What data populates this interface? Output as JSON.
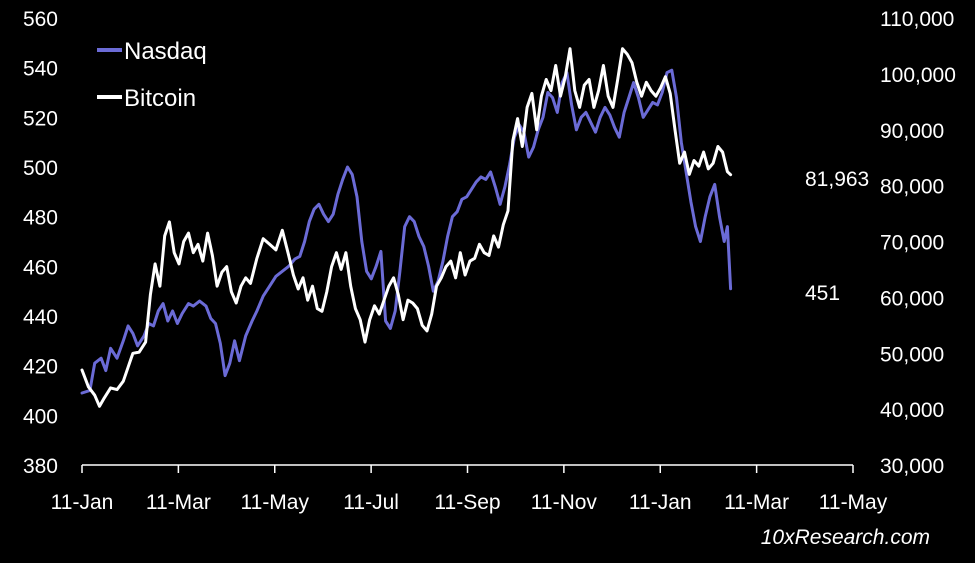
{
  "chart_data": {
    "type": "line",
    "title": "",
    "xlabel": "",
    "ylabel_left": "",
    "ylabel_right": "",
    "x_ticks": [
      "11-Jan",
      "11-Mar",
      "11-May",
      "11-Jul",
      "11-Sep",
      "11-Nov",
      "11-Jan",
      "11-Mar",
      "11-May"
    ],
    "x_range_days": [
      0,
      485
    ],
    "y_left": {
      "ticks": [
        380,
        400,
        420,
        440,
        460,
        480,
        500,
        520,
        540,
        560
      ],
      "min": 380,
      "max": 560
    },
    "y_right": {
      "ticks": [
        "30,000",
        "40,000",
        "50,000",
        "60,000",
        "70,000",
        "80,000",
        "90,000",
        "100,000",
        "110,000"
      ],
      "min": 30000,
      "max": 110000
    },
    "legend": {
      "position": "top-left",
      "entries": [
        "Nasdaq",
        "Bitcoin"
      ]
    },
    "end_labels": {
      "bitcoin": "81,963",
      "nasdaq": "451"
    },
    "watermark": "10xResearch.com",
    "series": [
      {
        "name": "Nasdaq",
        "axis": "left",
        "color": "#6b6bd6",
        "points": [
          [
            0,
            409
          ],
          [
            5,
            410
          ],
          [
            8,
            421
          ],
          [
            12,
            423
          ],
          [
            15,
            418
          ],
          [
            18,
            427
          ],
          [
            22,
            423
          ],
          [
            26,
            430
          ],
          [
            29,
            436
          ],
          [
            32,
            433
          ],
          [
            35,
            428
          ],
          [
            39,
            432
          ],
          [
            42,
            437
          ],
          [
            45,
            436
          ],
          [
            48,
            442
          ],
          [
            51,
            445
          ],
          [
            54,
            438
          ],
          [
            57,
            442
          ],
          [
            60,
            437
          ],
          [
            63,
            441
          ],
          [
            67,
            445
          ],
          [
            70,
            444
          ],
          [
            74,
            446
          ],
          [
            78,
            444
          ],
          [
            81,
            439
          ],
          [
            84,
            437
          ],
          [
            87,
            429
          ],
          [
            90,
            416
          ],
          [
            93,
            421
          ],
          [
            96,
            430
          ],
          [
            99,
            422
          ],
          [
            103,
            432
          ],
          [
            107,
            438
          ],
          [
            110,
            442
          ],
          [
            114,
            448
          ],
          [
            118,
            452
          ],
          [
            122,
            456
          ],
          [
            126,
            458
          ],
          [
            130,
            460
          ],
          [
            134,
            463
          ],
          [
            137,
            464
          ],
          [
            140,
            470
          ],
          [
            143,
            478
          ],
          [
            146,
            483
          ],
          [
            149,
            485
          ],
          [
            152,
            481
          ],
          [
            155,
            478
          ],
          [
            158,
            481
          ],
          [
            161,
            489
          ],
          [
            164,
            495
          ],
          [
            167,
            500
          ],
          [
            170,
            497
          ],
          [
            173,
            488
          ],
          [
            176,
            470
          ],
          [
            179,
            458
          ],
          [
            182,
            455
          ],
          [
            185,
            460
          ],
          [
            188,
            466
          ],
          [
            191,
            438
          ],
          [
            194,
            435
          ],
          [
            197,
            442
          ],
          [
            200,
            458
          ],
          [
            203,
            476
          ],
          [
            206,
            480
          ],
          [
            209,
            478
          ],
          [
            212,
            472
          ],
          [
            215,
            468
          ],
          [
            218,
            460
          ],
          [
            221,
            450
          ],
          [
            224,
            454
          ],
          [
            227,
            462
          ],
          [
            230,
            472
          ],
          [
            233,
            480
          ],
          [
            236,
            482
          ],
          [
            239,
            487
          ],
          [
            242,
            488
          ],
          [
            245,
            491
          ],
          [
            248,
            494
          ],
          [
            251,
            496
          ],
          [
            254,
            495
          ],
          [
            257,
            498
          ],
          [
            260,
            492
          ],
          [
            263,
            485
          ],
          [
            266,
            492
          ],
          [
            269,
            501
          ],
          [
            272,
            512
          ],
          [
            275,
            517
          ],
          [
            278,
            514
          ],
          [
            281,
            504
          ],
          [
            284,
            508
          ],
          [
            287,
            515
          ],
          [
            290,
            520
          ],
          [
            293,
            530
          ],
          [
            296,
            528
          ],
          [
            299,
            522
          ],
          [
            302,
            534
          ],
          [
            305,
            538
          ],
          [
            308,
            525
          ],
          [
            311,
            515
          ],
          [
            314,
            520
          ],
          [
            317,
            522
          ],
          [
            320,
            518
          ],
          [
            323,
            514
          ],
          [
            326,
            520
          ],
          [
            329,
            524
          ],
          [
            332,
            521
          ],
          [
            335,
            516
          ],
          [
            338,
            512
          ],
          [
            341,
            522
          ],
          [
            344,
            528
          ],
          [
            347,
            534
          ],
          [
            350,
            528
          ],
          [
            353,
            520
          ],
          [
            356,
            523
          ],
          [
            359,
            526
          ],
          [
            362,
            525
          ],
          [
            365,
            530
          ],
          [
            368,
            538
          ],
          [
            371,
            539
          ],
          [
            374,
            528
          ],
          [
            377,
            510
          ],
          [
            380,
            498
          ],
          [
            383,
            486
          ],
          [
            386,
            476
          ],
          [
            389,
            470
          ],
          [
            392,
            480
          ],
          [
            395,
            488
          ],
          [
            398,
            493
          ],
          [
            401,
            480
          ],
          [
            404,
            470
          ],
          [
            406,
            476
          ],
          [
            408,
            451
          ]
        ]
      },
      {
        "name": "Bitcoin",
        "axis": "right",
        "color": "#ffffff",
        "points": [
          [
            0,
            47000
          ],
          [
            4,
            44000
          ],
          [
            8,
            42500
          ],
          [
            11,
            40500
          ],
          [
            14,
            42000
          ],
          [
            18,
            43800
          ],
          [
            22,
            43500
          ],
          [
            26,
            45000
          ],
          [
            29,
            47500
          ],
          [
            32,
            50000
          ],
          [
            36,
            50200
          ],
          [
            40,
            52000
          ],
          [
            43,
            60500
          ],
          [
            46,
            66000
          ],
          [
            49,
            62000
          ],
          [
            52,
            71000
          ],
          [
            55,
            73500
          ],
          [
            58,
            68000
          ],
          [
            61,
            66000
          ],
          [
            64,
            70000
          ],
          [
            67,
            71500
          ],
          [
            70,
            68000
          ],
          [
            73,
            69500
          ],
          [
            76,
            66500
          ],
          [
            79,
            71500
          ],
          [
            82,
            67500
          ],
          [
            85,
            62000
          ],
          [
            88,
            64500
          ],
          [
            91,
            65500
          ],
          [
            94,
            61000
          ],
          [
            97,
            59000
          ],
          [
            100,
            62000
          ],
          [
            103,
            63500
          ],
          [
            106,
            62500
          ],
          [
            110,
            67000
          ],
          [
            114,
            70500
          ],
          [
            118,
            69500
          ],
          [
            122,
            68500
          ],
          [
            126,
            72000
          ],
          [
            130,
            67500
          ],
          [
            133,
            64000
          ],
          [
            136,
            61500
          ],
          [
            139,
            63500
          ],
          [
            142,
            59500
          ],
          [
            145,
            62000
          ],
          [
            148,
            58000
          ],
          [
            151,
            57500
          ],
          [
            154,
            61000
          ],
          [
            157,
            65500
          ],
          [
            160,
            68000
          ],
          [
            163,
            65000
          ],
          [
            166,
            68000
          ],
          [
            169,
            62000
          ],
          [
            172,
            58000
          ],
          [
            175,
            56000
          ],
          [
            178,
            52000
          ],
          [
            181,
            56000
          ],
          [
            184,
            58500
          ],
          [
            187,
            57000
          ],
          [
            190,
            59500
          ],
          [
            193,
            62000
          ],
          [
            196,
            63500
          ],
          [
            199,
            60500
          ],
          [
            202,
            56000
          ],
          [
            205,
            59500
          ],
          [
            208,
            59000
          ],
          [
            211,
            58000
          ],
          [
            214,
            55000
          ],
          [
            217,
            54000
          ],
          [
            220,
            57000
          ],
          [
            223,
            62000
          ],
          [
            226,
            63500
          ],
          [
            229,
            65500
          ],
          [
            232,
            66500
          ],
          [
            235,
            63500
          ],
          [
            238,
            68000
          ],
          [
            241,
            64000
          ],
          [
            244,
            66500
          ],
          [
            247,
            67000
          ],
          [
            250,
            69500
          ],
          [
            253,
            68000
          ],
          [
            256,
            67500
          ],
          [
            259,
            71000
          ],
          [
            262,
            69000
          ],
          [
            265,
            73000
          ],
          [
            268,
            75500
          ],
          [
            271,
            88000
          ],
          [
            274,
            92000
          ],
          [
            277,
            87000
          ],
          [
            280,
            94000
          ],
          [
            283,
            96500
          ],
          [
            286,
            90000
          ],
          [
            289,
            96000
          ],
          [
            292,
            99000
          ],
          [
            295,
            97000
          ],
          [
            298,
            101500
          ],
          [
            301,
            96000
          ],
          [
            304,
            99500
          ],
          [
            307,
            104500
          ],
          [
            310,
            97000
          ],
          [
            313,
            94000
          ],
          [
            316,
            98000
          ],
          [
            319,
            99000
          ],
          [
            322,
            94000
          ],
          [
            325,
            97000
          ],
          [
            328,
            101500
          ],
          [
            331,
            96000
          ],
          [
            334,
            94000
          ],
          [
            337,
            99000
          ],
          [
            340,
            104500
          ],
          [
            343,
            103500
          ],
          [
            346,
            102000
          ],
          [
            349,
            98500
          ],
          [
            352,
            96000
          ],
          [
            355,
            98500
          ],
          [
            358,
            97000
          ],
          [
            361,
            96000
          ],
          [
            364,
            97500
          ],
          [
            367,
            99500
          ],
          [
            370,
            96500
          ],
          [
            373,
            90000
          ],
          [
            376,
            84000
          ],
          [
            379,
            86000
          ],
          [
            382,
            82000
          ],
          [
            385,
            84500
          ],
          [
            388,
            83500
          ],
          [
            391,
            86000
          ],
          [
            394,
            83000
          ],
          [
            397,
            84000
          ],
          [
            400,
            87000
          ],
          [
            403,
            86000
          ],
          [
            406,
            82500
          ],
          [
            408,
            81963
          ]
        ]
      }
    ]
  }
}
